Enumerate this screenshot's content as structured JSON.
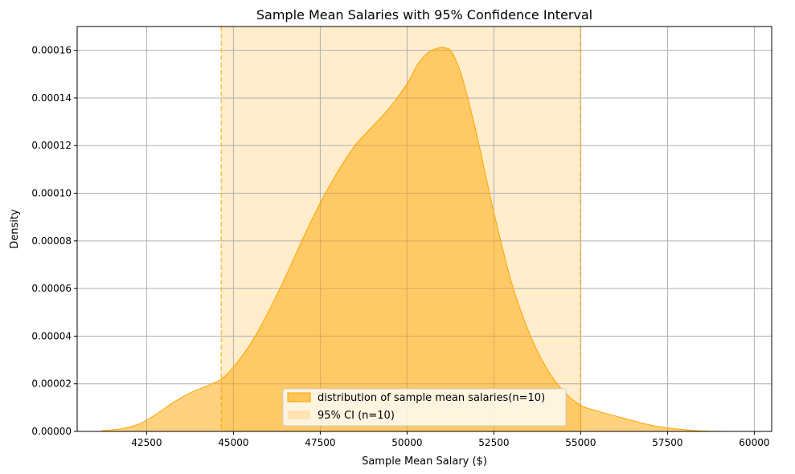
{
  "chart_data": {
    "type": "area",
    "title": "Sample Mean Salaries with 95% Confidence Interval",
    "xlabel": "Sample Mean Salary ($)",
    "ylabel": "Density",
    "xlim": [
      40500,
      60500
    ],
    "ylim": [
      0,
      0.00017
    ],
    "x_ticks": [
      42500,
      45000,
      47500,
      50000,
      52500,
      55000,
      57500,
      60000
    ],
    "y_ticks": [
      0,
      2e-05,
      4e-05,
      6e-05,
      8e-05,
      0.0001,
      0.00012,
      0.00014,
      0.00016
    ],
    "x_tick_labels": [
      "42500",
      "45000",
      "47500",
      "50000",
      "52500",
      "55000",
      "57500",
      "60000"
    ],
    "y_tick_labels": [
      "0.00000",
      "0.00002",
      "0.00004",
      "0.00006",
      "0.00008",
      "0.00010",
      "0.00012",
      "0.00014",
      "0.00016"
    ],
    "grid": true,
    "legend_position": "bottom-center",
    "series": [
      {
        "name": "distribution of sample mean salaries(n=10)",
        "color": "#ffa500",
        "x": [
          41200,
          41800,
          42300,
          42800,
          43300,
          43800,
          44300,
          44650,
          45000,
          45500,
          46000,
          46500,
          47000,
          47500,
          48000,
          48500,
          49000,
          49500,
          50000,
          50300,
          50600,
          50900,
          51100,
          51300,
          51600,
          52000,
          52500,
          53000,
          53500,
          54000,
          54500,
          55000,
          55500,
          56000,
          56500,
          57000,
          57500,
          58000,
          58500,
          59100
        ],
        "y": [
          3e-07,
          1.2e-06,
          3.2e-06,
          7.5e-06,
          1.25e-05,
          1.65e-05,
          1.95e-05,
          2.2e-05,
          2.7e-05,
          3.7e-05,
          5e-05,
          6.5e-05,
          8.1e-05,
          9.6e-05,
          0.000109,
          0.00012,
          0.000128,
          0.000136,
          0.000146,
          0.000154,
          0.000159,
          0.000161,
          0.000161,
          0.000159,
          0.000148,
          0.000125,
          9.2e-05,
          6.3e-05,
          4.2e-05,
          2.7e-05,
          1.7e-05,
          1.1e-05,
          8.5e-06,
          6.5e-06,
          4.5e-06,
          2.7e-06,
          1.5e-06,
          7e-07,
          2e-07,
          0.0
        ]
      }
    ],
    "confidence_interval": {
      "label": "95% CI (n=10)",
      "lower": 44650,
      "upper": 55000,
      "color": "#ffa500"
    }
  }
}
